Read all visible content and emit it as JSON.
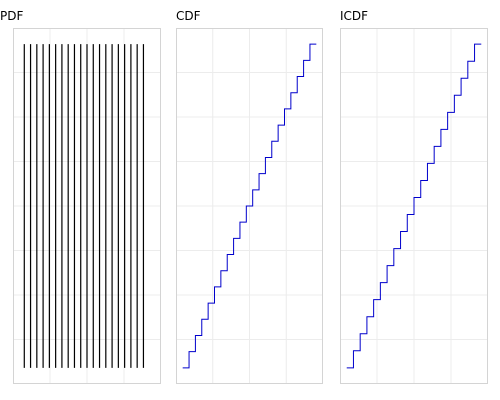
{
  "chart_data": [
    {
      "type": "line",
      "title": "PDF",
      "style": "impulses",
      "color": "#000000",
      "grid": true,
      "x": [
        1,
        2,
        3,
        4,
        5,
        6,
        7,
        8,
        9,
        10,
        11,
        12,
        13,
        14,
        15,
        16,
        17,
        18,
        19,
        20
      ],
      "values": [
        1,
        1,
        1,
        1,
        1,
        1,
        1,
        1,
        1,
        1,
        1,
        1,
        1,
        1,
        1,
        1,
        1,
        1,
        1,
        1
      ],
      "xlim": [
        -0.8,
        22.8
      ],
      "ylim": [
        -0.05,
        1.05
      ]
    },
    {
      "type": "line",
      "title": "CDF",
      "style": "step",
      "color": "#0000cc",
      "grid": true,
      "x": [
        0,
        1,
        2,
        3,
        4,
        5,
        6,
        7,
        8,
        9,
        10,
        11,
        12,
        13,
        14,
        15,
        16,
        17,
        18,
        19,
        20,
        21
      ],
      "values": [
        0,
        0.05,
        0.1,
        0.15,
        0.2,
        0.25,
        0.3,
        0.35,
        0.4,
        0.45,
        0.5,
        0.55,
        0.6,
        0.65,
        0.7,
        0.75,
        0.8,
        0.85,
        0.9,
        0.95,
        1.0,
        1.0
      ],
      "xlim": [
        -1.05,
        22.05
      ],
      "ylim": [
        -0.05,
        1.05
      ]
    },
    {
      "type": "line",
      "title": "ICDF",
      "style": "step",
      "color": "#0000cc",
      "grid": true,
      "x": [
        0,
        0.05,
        0.1,
        0.15,
        0.2,
        0.25,
        0.3,
        0.35,
        0.4,
        0.45,
        0.5,
        0.55,
        0.6,
        0.65,
        0.7,
        0.75,
        0.8,
        0.85,
        0.9,
        0.95,
        1.0
      ],
      "values": [
        1,
        2,
        3,
        4,
        5,
        6,
        7,
        8,
        9,
        10,
        11,
        12,
        13,
        14,
        15,
        16,
        17,
        18,
        19,
        20,
        20
      ],
      "xlim": [
        -0.05,
        1.05
      ],
      "ylim": [
        0.05,
        20.95
      ]
    }
  ]
}
